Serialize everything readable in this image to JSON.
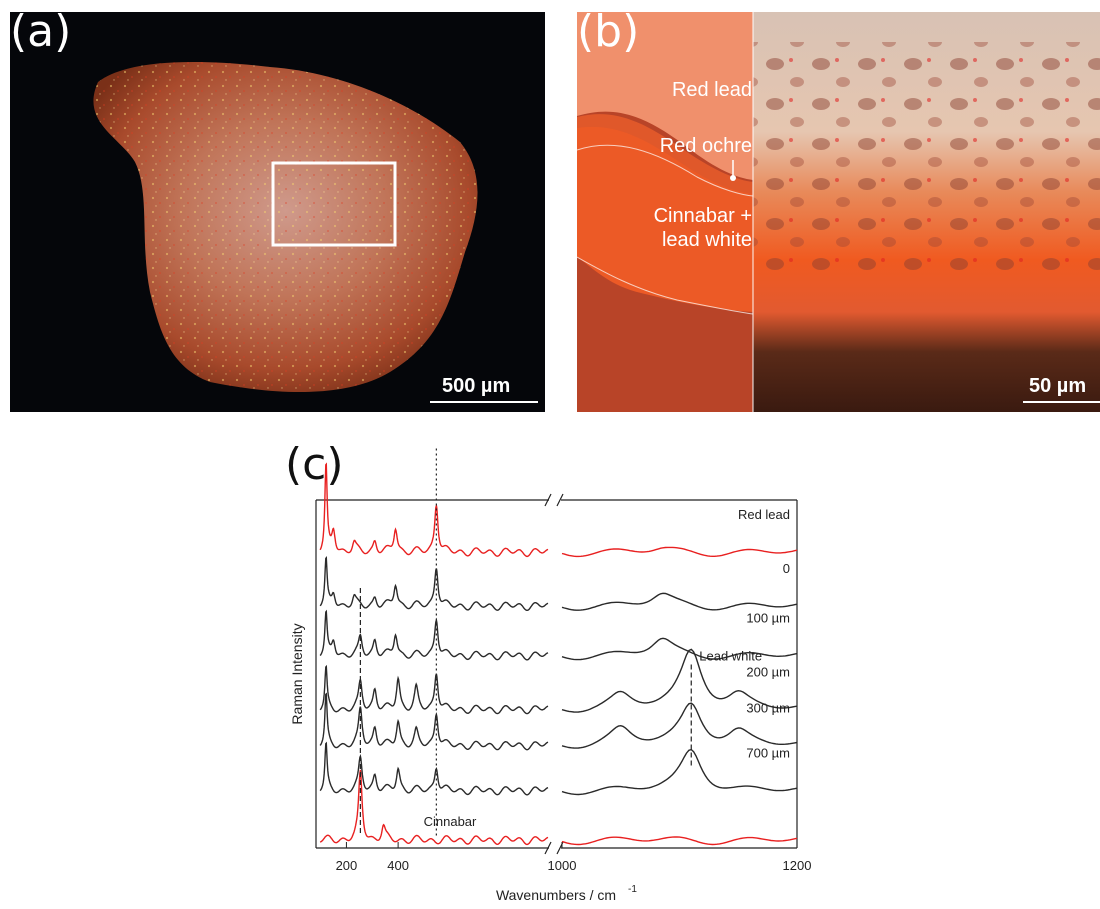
{
  "panel_a": {
    "letter": "(a)",
    "scale_bar_label": "500 µm"
  },
  "panel_b": {
    "letter": "(b)",
    "layers": [
      {
        "label": "Red lead",
        "color": "#f0906c"
      },
      {
        "label": "Red ochre",
        "color": "#e0582a"
      },
      {
        "label": "Cinnabar +\nlead white",
        "color": "#ec5a26"
      },
      {
        "label": "",
        "color": "#b84428"
      }
    ],
    "scale_bar_label": "50 µm"
  },
  "chart_data": {
    "type": "line",
    "panel_letter": "(c)",
    "title": "",
    "xlabel": "Wavenumbers / cm",
    "xlabel_exponent": "-1",
    "ylabel": "Raman Intensity",
    "x_segments": [
      {
        "range": [
          90,
          980
        ],
        "ticks": [
          200,
          400
        ]
      },
      {
        "range": [
          1000,
          1200
        ],
        "ticks": [
          1000,
          1200
        ]
      }
    ],
    "axis_break": true,
    "series": [
      {
        "name": "Red lead",
        "color": "#e82020",
        "offset": 6.4,
        "peaks": [
          [
            121,
            1.9
          ],
          [
            150,
            0.5
          ],
          [
            230,
            0.2
          ],
          [
            310,
            0.25
          ],
          [
            390,
            0.55
          ],
          [
            548,
            1.1
          ],
          [
            1085,
            0.06
          ]
        ]
      },
      {
        "name": "0",
        "color": "#2a2a2a",
        "offset": 5.2,
        "peaks": [
          [
            121,
            1.0
          ],
          [
            150,
            0.3
          ],
          [
            230,
            0.2
          ],
          [
            310,
            0.2
          ],
          [
            390,
            0.5
          ],
          [
            548,
            0.9
          ],
          [
            1085,
            0.25
          ]
        ]
      },
      {
        "name": "100 µm",
        "color": "#2a2a2a",
        "offset": 4.1,
        "peaks": [
          [
            121,
            0.9
          ],
          [
            150,
            0.35
          ],
          [
            254,
            0.4
          ],
          [
            310,
            0.35
          ],
          [
            390,
            0.5
          ],
          [
            548,
            0.85
          ],
          [
            1085,
            0.35
          ]
        ]
      },
      {
        "name": "200 µm",
        "color": "#2a2a2a",
        "offset": 2.9,
        "peaks": [
          [
            121,
            0.9
          ],
          [
            254,
            0.6
          ],
          [
            310,
            0.45
          ],
          [
            400,
            0.7
          ],
          [
            470,
            0.45
          ],
          [
            548,
            0.85
          ],
          [
            1050,
            0.3
          ],
          [
            1110,
            1.3
          ],
          [
            1150,
            0.3
          ]
        ]
      },
      {
        "name": "300 µm",
        "color": "#2a2a2a",
        "offset": 2.1,
        "peaks": [
          [
            121,
            1.1
          ],
          [
            254,
            0.8
          ],
          [
            310,
            0.4
          ],
          [
            400,
            0.55
          ],
          [
            470,
            0.3
          ],
          [
            548,
            0.75
          ],
          [
            1050,
            0.35
          ],
          [
            1110,
            0.9
          ],
          [
            1150,
            0.3
          ]
        ]
      },
      {
        "name": "700 µm",
        "color": "#2a2a2a",
        "offset": 1.1,
        "peaks": [
          [
            121,
            1.0
          ],
          [
            254,
            0.7
          ],
          [
            310,
            0.35
          ],
          [
            400,
            0.5
          ],
          [
            548,
            0.55
          ],
          [
            1110,
            0.9
          ]
        ]
      },
      {
        "name": "Cinnabar",
        "color": "#e82020",
        "offset": 0.0,
        "peaks": [
          [
            254,
            1.5
          ],
          [
            343,
            0.3
          ]
        ]
      }
    ],
    "reference_lines": [
      {
        "x": 254,
        "style": "dashed"
      },
      {
        "x": 548,
        "style": "dotted"
      },
      {
        "x": 1110,
        "style": "dashed",
        "label": "Lead white"
      }
    ]
  }
}
